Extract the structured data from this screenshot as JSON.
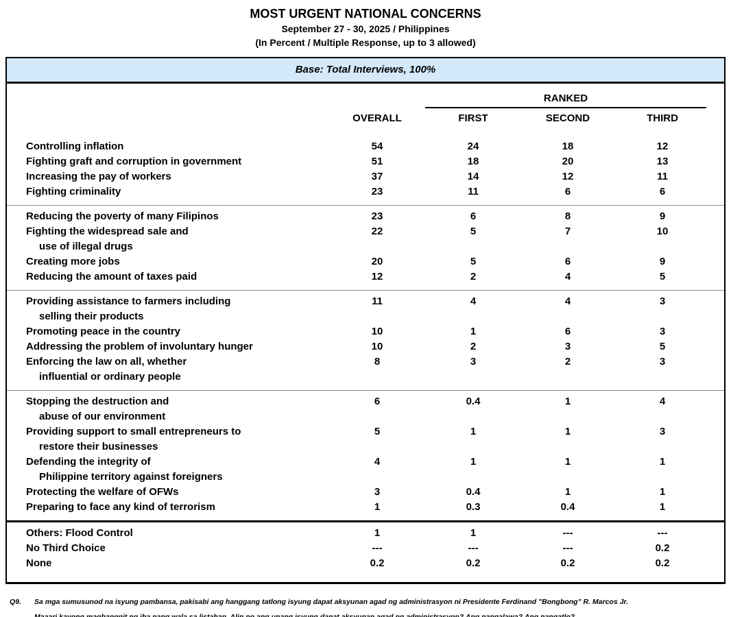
{
  "header": {
    "title": "MOST URGENT NATIONAL CONCERNS",
    "subtitle_date": "September 27 - 30, 2025 / Philippines",
    "subtitle_note": "(In Percent / Multiple Response, up to 3 allowed)"
  },
  "table": {
    "base_banner": "Base: Total Interviews, 100%",
    "ranked_header": "RANKED",
    "columns": [
      "OVERALL",
      "FIRST",
      "SECOND",
      "THIRD"
    ],
    "groups": [
      {
        "rows": [
          {
            "label": [
              "Controlling inflation"
            ],
            "values": [
              "54",
              "24",
              "18",
              "12"
            ]
          },
          {
            "label": [
              "Fighting graft and corruption in government"
            ],
            "values": [
              "51",
              "18",
              "20",
              "13"
            ]
          },
          {
            "label": [
              "Increasing the pay of workers"
            ],
            "values": [
              "37",
              "14",
              "12",
              "11"
            ]
          },
          {
            "label": [
              "Fighting criminality"
            ],
            "values": [
              "23",
              "11",
              "6",
              "6"
            ]
          }
        ]
      },
      {
        "rows": [
          {
            "label": [
              "Reducing the poverty of many Filipinos"
            ],
            "values": [
              "23",
              "6",
              "8",
              "9"
            ]
          },
          {
            "label": [
              "Fighting the widespread sale and",
              "use of illegal drugs"
            ],
            "values": [
              "22",
              "5",
              "7",
              "10"
            ]
          },
          {
            "label": [
              "Creating more jobs"
            ],
            "values": [
              "20",
              "5",
              "6",
              "9"
            ]
          },
          {
            "label": [
              "Reducing the amount of taxes paid"
            ],
            "values": [
              "12",
              "2",
              "4",
              "5"
            ]
          }
        ]
      },
      {
        "rows": [
          {
            "label": [
              "Providing assistance to farmers including",
              "selling their products"
            ],
            "values": [
              "11",
              "4",
              "4",
              "3"
            ]
          },
          {
            "label": [
              "Promoting peace in the country"
            ],
            "values": [
              "10",
              "1",
              "6",
              "3"
            ]
          },
          {
            "label": [
              "Addressing the problem of involuntary hunger"
            ],
            "values": [
              "10",
              "2",
              "3",
              "5"
            ]
          },
          {
            "label": [
              "Enforcing the law on all, whether",
              "influential or ordinary people"
            ],
            "values": [
              "8",
              "3",
              "2",
              "3"
            ]
          }
        ]
      },
      {
        "rows": [
          {
            "label": [
              "Stopping the destruction and",
              "abuse of our environment"
            ],
            "values": [
              "6",
              "0.4",
              "1",
              "4"
            ]
          },
          {
            "label": [
              "Providing support to small entrepreneurs to",
              "restore their businesses"
            ],
            "values": [
              "5",
              "1",
              "1",
              "3"
            ]
          },
          {
            "label": [
              "Defending the integrity of",
              "Philippine territory against foreigners"
            ],
            "values": [
              "4",
              "1",
              "1",
              "1"
            ]
          },
          {
            "label": [
              "Protecting the welfare of OFWs"
            ],
            "values": [
              "3",
              "0.4",
              "1",
              "1"
            ]
          },
          {
            "label": [
              "Preparing to face any kind of terrorism"
            ],
            "values": [
              "1",
              "0.3",
              "0.4",
              "1"
            ]
          }
        ]
      },
      {
        "thick_top": true,
        "rows": [
          {
            "label": [
              "Others: Flood Control"
            ],
            "values": [
              "1",
              "1",
              "---",
              "---"
            ]
          },
          {
            "label": [
              "No Third Choice"
            ],
            "values": [
              "---",
              "---",
              "---",
              "0.2"
            ]
          },
          {
            "label": [
              "None"
            ],
            "values": [
              "0.2",
              "0.2",
              "0.2",
              "0.2"
            ]
          }
        ]
      }
    ]
  },
  "footnote": {
    "q_label": "Q9.",
    "line1": "Sa mga sumusunod na isyung pambansa, pakisabi ang hanggang tatlong isyung dapat aksyunan agad ng administrasyon ni Presidente Ferdinand \"Bongbong\" R. Marcos Jr.",
    "line2": "Maaari kayong magbanggit ng iba pang wala sa listahan. Alin po ang unang isyung dapat aksyunan agad ng administrasyon? Ang pangalawa? Ang pangatlo?"
  },
  "colors": {
    "banner_background": "#d4e9f9",
    "border": "#000000",
    "group_separator": "#8c8c8c"
  }
}
